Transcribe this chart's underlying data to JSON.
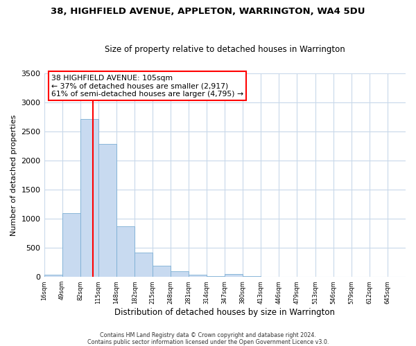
{
  "title": "38, HIGHFIELD AVENUE, APPLETON, WARRINGTON, WA4 5DU",
  "subtitle": "Size of property relative to detached houses in Warrington",
  "xlabel": "Distribution of detached houses by size in Warrington",
  "ylabel": "Number of detached properties",
  "bar_color": "#c8daf0",
  "bar_edge_color": "#7bafd4",
  "background_color": "#ffffff",
  "grid_color": "#c8d8ea",
  "vline_x": 105,
  "vline_color": "red",
  "annotation_title": "38 HIGHFIELD AVENUE: 105sqm",
  "annotation_line1": "← 37% of detached houses are smaller (2,917)",
  "annotation_line2": "61% of semi-detached houses are larger (4,795) →",
  "annotation_box_color": "#ffffff",
  "annotation_box_edge": "red",
  "bin_edges": [
    16,
    49,
    82,
    115,
    148,
    182,
    215,
    248,
    281,
    314,
    347,
    380,
    413,
    446,
    479,
    513,
    546,
    579,
    612,
    645,
    678
  ],
  "bin_heights": [
    40,
    1100,
    2720,
    2290,
    870,
    420,
    190,
    95,
    40,
    10,
    45,
    20,
    5,
    2,
    1,
    0,
    0,
    0,
    0,
    0
  ],
  "ylim": [
    0,
    3500
  ],
  "footer1": "Contains HM Land Registry data © Crown copyright and database right 2024.",
  "footer2": "Contains public sector information licensed under the Open Government Licence v3.0."
}
